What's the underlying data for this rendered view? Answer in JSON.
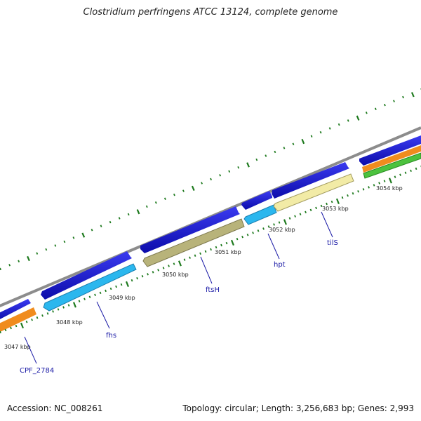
{
  "title": "Clostridium perfringens ATCC 13124, complete genome",
  "footer": {
    "accession": "Accession: NC_008261",
    "summary": "Topology: circular; Length: 3,256,683 bp; Genes: 2,993"
  },
  "colors": {
    "backbone": "#8a8a8a",
    "forward_cds": "#1c1cdc",
    "reverse_cds_cyan": "#2bb7ee",
    "reverse_cds_olive": "#b8b37a",
    "reverse_cds_pale": "#f2eba6",
    "orange_track": "#f08c1e",
    "green_track": "#4cc23e",
    "tick": "#1e7a1e",
    "label": "#1a1aa6"
  },
  "kbp_labels": [
    "3047 kbp",
    "3048 kbp",
    "3049 kbp",
    "3050 kbp",
    "3051 kbp",
    "3052 kbp",
    "3053 kbp",
    "3054 kbp"
  ],
  "gene_labels": [
    "CPF_2784",
    "fhs",
    "ftsH",
    "hpt",
    "tilS"
  ]
}
